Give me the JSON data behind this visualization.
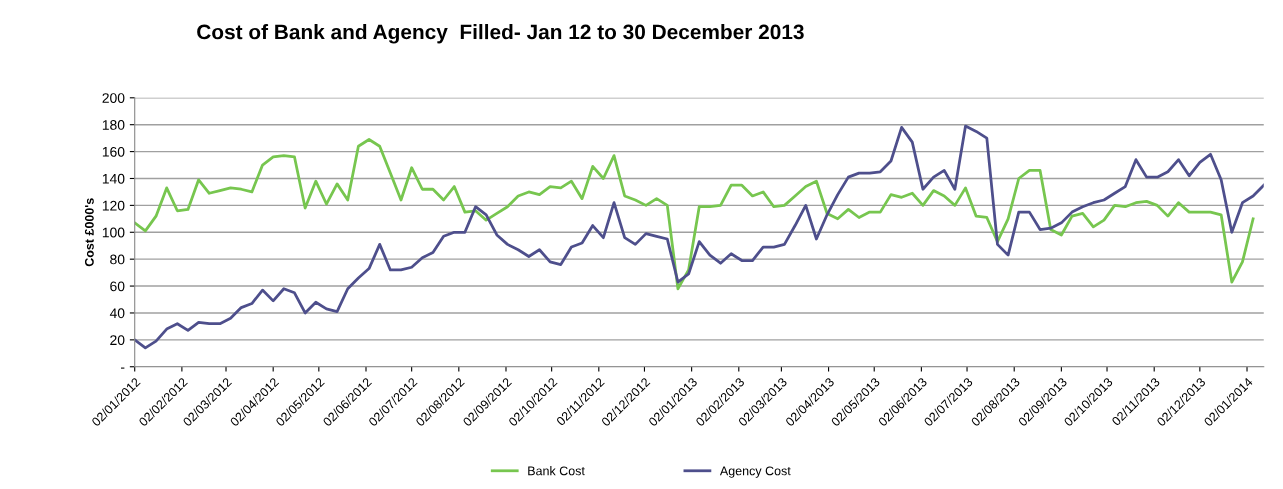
{
  "chart_data": {
    "type": "line",
    "title": "Cost of Bank and Agency  Filled- Jan 12 to 30 December 2013",
    "ylabel": "Cost £000's",
    "x": [
      "2012-01-02",
      "2012-01-09",
      "2012-01-16",
      "2012-01-23",
      "2012-01-30",
      "2012-02-06",
      "2012-02-13",
      "2012-02-20",
      "2012-02-27",
      "2012-03-05",
      "2012-03-12",
      "2012-03-19",
      "2012-03-26",
      "2012-04-02",
      "2012-04-09",
      "2012-04-16",
      "2012-04-23",
      "2012-04-30",
      "2012-05-07",
      "2012-05-14",
      "2012-05-21",
      "2012-05-28",
      "2012-06-04",
      "2012-06-11",
      "2012-06-18",
      "2012-06-25",
      "2012-07-02",
      "2012-07-09",
      "2012-07-16",
      "2012-07-23",
      "2012-07-30",
      "2012-08-06",
      "2012-08-13",
      "2012-08-20",
      "2012-08-27",
      "2012-09-03",
      "2012-09-10",
      "2012-09-17",
      "2012-09-24",
      "2012-10-01",
      "2012-10-08",
      "2012-10-15",
      "2012-10-22",
      "2012-10-29",
      "2012-11-05",
      "2012-11-12",
      "2012-11-19",
      "2012-11-26",
      "2012-12-03",
      "2012-12-10",
      "2012-12-17",
      "2012-12-24",
      "2012-12-31",
      "2013-01-07",
      "2013-01-14",
      "2013-01-21",
      "2013-01-28",
      "2013-02-04",
      "2013-02-11",
      "2013-02-18",
      "2013-02-25",
      "2013-03-04",
      "2013-03-11",
      "2013-03-18",
      "2013-03-25",
      "2013-04-01",
      "2013-04-08",
      "2013-04-15",
      "2013-04-22",
      "2013-04-29",
      "2013-05-06",
      "2013-05-13",
      "2013-05-20",
      "2013-05-27",
      "2013-06-03",
      "2013-06-10",
      "2013-06-17",
      "2013-06-24",
      "2013-07-01",
      "2013-07-08",
      "2013-07-15",
      "2013-07-22",
      "2013-07-29",
      "2013-08-05",
      "2013-08-12",
      "2013-08-19",
      "2013-08-26",
      "2013-09-02",
      "2013-09-09",
      "2013-09-16",
      "2013-09-23",
      "2013-09-30",
      "2013-10-07",
      "2013-10-14",
      "2013-10-21",
      "2013-10-28",
      "2013-11-04",
      "2013-11-11",
      "2013-11-18",
      "2013-11-25",
      "2013-12-02",
      "2013-12-09",
      "2013-12-16",
      "2013-12-23",
      "2013-12-30",
      "2014-01-06",
      "2014-01-13"
    ],
    "series": [
      {
        "name": "Bank Cost",
        "color": "#77c64f",
        "values": [
          107,
          101,
          112,
          133,
          116,
          117,
          139,
          129,
          131,
          133,
          132,
          130,
          150,
          156,
          157,
          156,
          118,
          138,
          121,
          136,
          124,
          164,
          169,
          164,
          144,
          124,
          148,
          132,
          132,
          124,
          134,
          115,
          116,
          109,
          114,
          119,
          127,
          130,
          128,
          134,
          133,
          138,
          125,
          149,
          140,
          157,
          127,
          124,
          120,
          125,
          120,
          58,
          72,
          119,
          119,
          120,
          135,
          135,
          127,
          130,
          119,
          120,
          127,
          134,
          138,
          114,
          110,
          117,
          111,
          115,
          115,
          128,
          126,
          129,
          120,
          131,
          127,
          120,
          133,
          112,
          111,
          93,
          110,
          140,
          146,
          146,
          102,
          98,
          112,
          114,
          104,
          109,
          120,
          119,
          122,
          123,
          120,
          112,
          122,
          115,
          115,
          115,
          113,
          63,
          78,
          110,
          null
        ]
      },
      {
        "name": "Agency Cost",
        "color": "#4e4f8c",
        "values": [
          20,
          14,
          19,
          28,
          32,
          27,
          33,
          32,
          32,
          36,
          44,
          47,
          57,
          49,
          58,
          55,
          40,
          48,
          43,
          41,
          58,
          66,
          73,
          91,
          72,
          72,
          74,
          81,
          85,
          97,
          100,
          100,
          119,
          113,
          98,
          91,
          87,
          82,
          87,
          78,
          76,
          89,
          92,
          105,
          96,
          122,
          96,
          91,
          99,
          97,
          95,
          63,
          69,
          93,
          83,
          77,
          84,
          79,
          79,
          89,
          89,
          91,
          105,
          120,
          95,
          113,
          128,
          141,
          144,
          144,
          145,
          153,
          178,
          167,
          132,
          141,
          146,
          132,
          179,
          175,
          170,
          91,
          83,
          115,
          115,
          102,
          103,
          107,
          115,
          119,
          122,
          124,
          129,
          134,
          154,
          141,
          141,
          145,
          154,
          142,
          152,
          158,
          139,
          100,
          122,
          127,
          135
        ]
      }
    ],
    "xlim": [
      "2012-01-02",
      "2014-01-13"
    ],
    "xticks": [
      {
        "value": "2012-01-02",
        "label": "02/01/2012"
      },
      {
        "value": "2012-02-02",
        "label": "02/02/2012"
      },
      {
        "value": "2012-03-02",
        "label": "02/03/2012"
      },
      {
        "value": "2012-04-02",
        "label": "02/04/2012"
      },
      {
        "value": "2012-05-02",
        "label": "02/05/2012"
      },
      {
        "value": "2012-06-02",
        "label": "02/06/2012"
      },
      {
        "value": "2012-07-02",
        "label": "02/07/2012"
      },
      {
        "value": "2012-08-02",
        "label": "02/08/2012"
      },
      {
        "value": "2012-09-02",
        "label": "02/09/2012"
      },
      {
        "value": "2012-10-02",
        "label": "02/10/2012"
      },
      {
        "value": "2012-11-02",
        "label": "02/11/2012"
      },
      {
        "value": "2012-12-02",
        "label": "02/12/2012"
      },
      {
        "value": "2013-01-02",
        "label": "02/01/2013"
      },
      {
        "value": "2013-02-02",
        "label": "02/02/2013"
      },
      {
        "value": "2013-03-02",
        "label": "02/03/2013"
      },
      {
        "value": "2013-04-02",
        "label": "02/04/2013"
      },
      {
        "value": "2013-05-02",
        "label": "02/05/2013"
      },
      {
        "value": "2013-06-02",
        "label": "02/06/2013"
      },
      {
        "value": "2013-07-02",
        "label": "02/07/2013"
      },
      {
        "value": "2013-08-02",
        "label": "02/08/2013"
      },
      {
        "value": "2013-09-02",
        "label": "02/09/2013"
      },
      {
        "value": "2013-10-02",
        "label": "02/10/2013"
      },
      {
        "value": "2013-11-02",
        "label": "02/11/2013"
      },
      {
        "value": "2013-12-02",
        "label": "02/12/2013"
      },
      {
        "value": "2014-01-02",
        "label": "02/01/2014"
      }
    ],
    "ylim": [
      0,
      200
    ],
    "yticks": [
      {
        "value": 0,
        "label": "-"
      },
      20,
      40,
      60,
      80,
      100,
      120,
      140,
      160,
      180,
      200
    ],
    "grid": "y",
    "legend": "bottom",
    "marker": "none",
    "line_style": "solid"
  }
}
